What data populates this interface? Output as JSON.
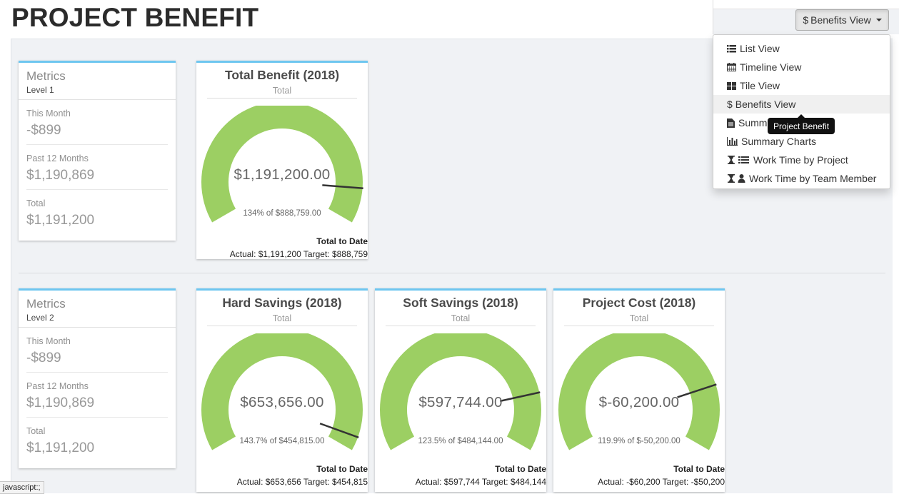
{
  "page": {
    "title": "PROJECT BENEFIT"
  },
  "toolbar": {
    "view_button_label": "Benefits View",
    "view_button_icon": "dollar-icon"
  },
  "menu": {
    "items": [
      {
        "label": "List View",
        "icon": "list-icon",
        "active": false
      },
      {
        "label": "Timeline View",
        "icon": "calendar-icon",
        "active": false
      },
      {
        "label": "Tile View",
        "icon": "tiles-icon",
        "active": false
      },
      {
        "label": "Benefits View",
        "icon": "dollar-icon",
        "active": true
      },
      {
        "label": "Summ",
        "icon": "document-icon",
        "active": false
      },
      {
        "label": "Summary Charts",
        "icon": "bar-chart-icon",
        "active": false
      },
      {
        "label": "Work Time by Project",
        "icon": "hourglass-list-icon",
        "active": false
      },
      {
        "label": "Work Time by Team Member",
        "icon": "hourglass-user-icon",
        "active": false
      }
    ],
    "tooltip": "Project Benefit"
  },
  "metrics": [
    {
      "title": "Metrics",
      "level": "Level 1",
      "this_month_label": "This Month",
      "this_month": "-$899",
      "past12_label": "Past 12 Months",
      "past12": "$1,190,869",
      "total_label": "Total",
      "total": "$1,191,200"
    },
    {
      "title": "Metrics",
      "level": "Level 2",
      "this_month_label": "This Month",
      "this_month": "-$899",
      "past12_label": "Past 12 Months",
      "past12": "$1,190,869",
      "total_label": "Total",
      "total": "$1,191,200"
    }
  ],
  "gauges": [
    {
      "title": "Total Benefit (2018)",
      "subtitle": "Total",
      "value": "$1,191,200.00",
      "pct_text": "134% of $888,759.00",
      "pct": 1.34,
      "ttd_label": "Total to Date",
      "actual_text": "Actual: $1,191,200 Target: $888,759"
    },
    {
      "title": "Hard Savings (2018)",
      "subtitle": "Total",
      "value": "$653,656.00",
      "pct_text": "143.7% of $454,815.00",
      "pct": 1.437,
      "ttd_label": "Total to Date",
      "actual_text": "Actual: $653,656 Target: $454,815"
    },
    {
      "title": "Soft Savings (2018)",
      "subtitle": "Total",
      "value": "$597,744.00",
      "pct_text": "123.5% of $484,144.00",
      "pct": 1.235,
      "ttd_label": "Total to Date",
      "actual_text": "Actual: $597,744 Target: $484,144"
    },
    {
      "title": "Project Cost (2018)",
      "subtitle": "Total",
      "value": "$-60,200.00",
      "pct_text": "119.9% of $-50,200.00",
      "pct": 1.199,
      "ttd_label": "Total to Date",
      "actual_text": "Actual: -$60,200 Target: -$50,200"
    }
  ],
  "statusbar": {
    "text": "javascript:;"
  },
  "colors": {
    "gauge_fill": "#9ccf63",
    "panel_accent": "#6ec6f0",
    "needle": "#333333"
  }
}
